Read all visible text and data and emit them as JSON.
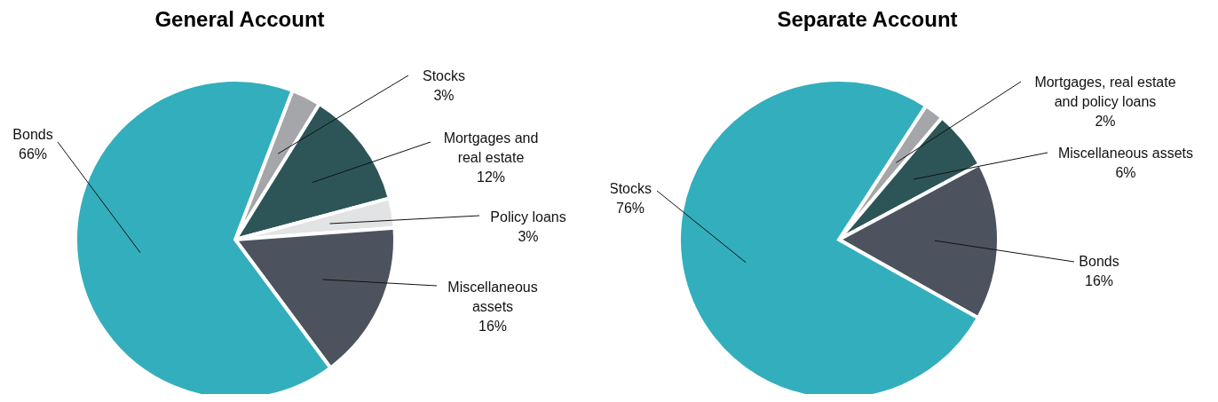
{
  "chart_data": [
    {
      "type": "pie",
      "title": "General Account",
      "categories": [
        "Stocks",
        "Mortgages and real estate",
        "Policy loans",
        "Miscellaneous assets",
        "Bonds"
      ],
      "values": [
        3,
        12,
        3,
        16,
        66
      ],
      "colors": [
        "#a4a6a9",
        "#2d5558",
        "#e2e3e4",
        "#4d535e",
        "#33aebd"
      ],
      "value_labels": [
        "3%",
        "12%",
        "3%",
        "16%",
        "66%"
      ]
    },
    {
      "type": "pie",
      "title": "Separate Account",
      "categories": [
        "Mortgages, real estate and policy loans",
        "Miscellaneous assets",
        "Bonds",
        "Stocks"
      ],
      "values": [
        2,
        6,
        16,
        76
      ],
      "colors": [
        "#a4a6a9",
        "#2d5558",
        "#4d535e",
        "#33aebd"
      ],
      "value_labels": [
        "2%",
        "6%",
        "16%",
        "76%"
      ]
    }
  ]
}
